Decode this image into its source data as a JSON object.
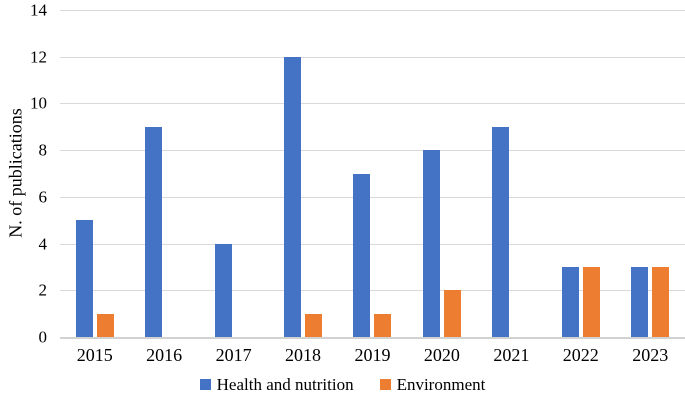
{
  "chart_data": {
    "type": "bar",
    "title": "",
    "categories": [
      "2015",
      "2016",
      "2017",
      "2018",
      "2019",
      "2020",
      "2021",
      "2022",
      "2023"
    ],
    "series": [
      {
        "name": "Health and nutrition",
        "color": "#4472C4",
        "values": [
          5,
          9,
          4,
          12,
          7,
          8,
          9,
          3,
          3
        ]
      },
      {
        "name": "Environment",
        "color": "#ED7D31",
        "values": [
          1,
          0,
          0,
          1,
          1,
          2,
          0,
          3,
          3
        ]
      }
    ],
    "xlabel": "",
    "ylabel": "N. of publications",
    "ylim": [
      0,
      14
    ],
    "ytick_step": 2,
    "yticks": [
      0,
      2,
      4,
      6,
      8,
      10,
      12,
      14
    ],
    "grid": true,
    "legend_position": "bottom",
    "colors": {
      "gridline": "#d9d9d9",
      "axis_line": "#d2d2d2",
      "text": "#000000",
      "background": "#ffffff"
    }
  }
}
